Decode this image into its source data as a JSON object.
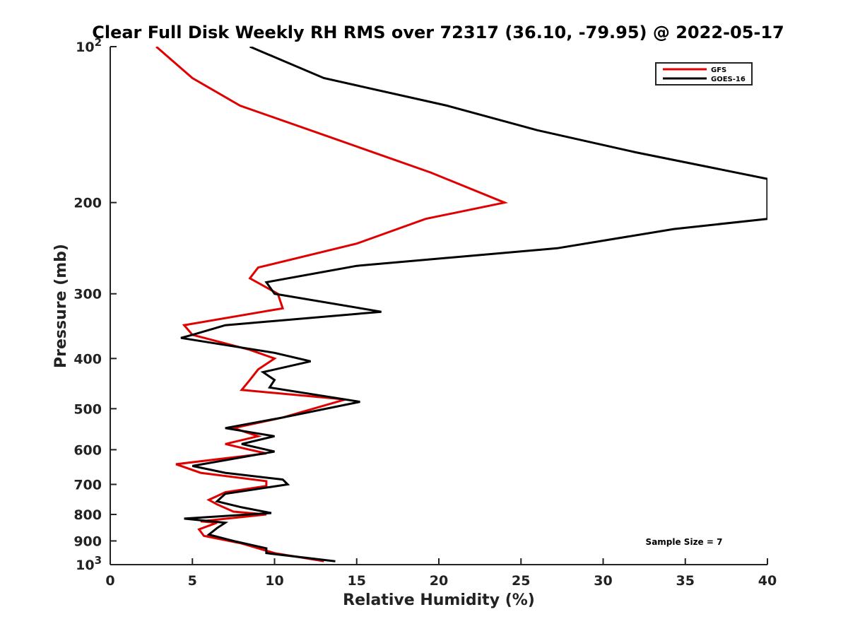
{
  "chart_data": {
    "type": "line",
    "title": "Clear Full Disk Weekly RH RMS over 72317 (36.10, -79.95) @ 2022-05-17",
    "xlabel": "Relative Humidity (%)",
    "ylabel": "Pressure (mb)",
    "xlim": [
      0,
      40
    ],
    "ylim": [
      100,
      1000
    ],
    "y_scale": "log",
    "y_reversed": true,
    "x_ticks": [
      0,
      5,
      10,
      15,
      20,
      25,
      30,
      35,
      40
    ],
    "y_ticks": [
      {
        "value": 100,
        "label": "10",
        "sup": "2"
      },
      {
        "value": 200,
        "label": "200"
      },
      {
        "value": 300,
        "label": "300"
      },
      {
        "value": 400,
        "label": "400"
      },
      {
        "value": 500,
        "label": "500"
      },
      {
        "value": 600,
        "label": "600"
      },
      {
        "value": 700,
        "label": "700"
      },
      {
        "value": 800,
        "label": "800"
      },
      {
        "value": 900,
        "label": "900"
      },
      {
        "value": 1000,
        "label": "10",
        "sup": "3"
      }
    ],
    "grid": false,
    "legend_position": "top-right",
    "series": [
      {
        "name": "GFS",
        "color": "#e00000",
        "points": [
          [
            2.8,
            100
          ],
          [
            5.0,
            115
          ],
          [
            7.9,
            130
          ],
          [
            13.5,
            150
          ],
          [
            19.5,
            175
          ],
          [
            24.0,
            200
          ],
          [
            19.2,
            215
          ],
          [
            15.0,
            240
          ],
          [
            9.0,
            267
          ],
          [
            8.5,
            280
          ],
          [
            10.2,
            300
          ],
          [
            10.5,
            320
          ],
          [
            4.5,
            345
          ],
          [
            5.0,
            360
          ],
          [
            8.5,
            385
          ],
          [
            10.0,
            400
          ],
          [
            9.0,
            420
          ],
          [
            8.5,
            440
          ],
          [
            8.0,
            460
          ],
          [
            14.3,
            480
          ],
          [
            10.5,
            520
          ],
          [
            7.5,
            545
          ],
          [
            9.0,
            565
          ],
          [
            7.0,
            585
          ],
          [
            8.5,
            600
          ],
          [
            9.5,
            610
          ],
          [
            4.0,
            640
          ],
          [
            5.5,
            665
          ],
          [
            9.5,
            690
          ],
          [
            9.5,
            705
          ],
          [
            7.0,
            725
          ],
          [
            6.0,
            750
          ],
          [
            6.5,
            765
          ],
          [
            7.5,
            790
          ],
          [
            9.5,
            800
          ],
          [
            5.5,
            825
          ],
          [
            6.5,
            830
          ],
          [
            5.4,
            855
          ],
          [
            5.7,
            880
          ],
          [
            8.0,
            910
          ],
          [
            10.0,
            950
          ],
          [
            13.0,
            985
          ]
        ]
      },
      {
        "name": "GOES-16",
        "color": "#000000",
        "points": [
          [
            8.5,
            100
          ],
          [
            13.0,
            115
          ],
          [
            20.5,
            130
          ],
          [
            26.0,
            145
          ],
          [
            32.0,
            160
          ],
          [
            40.0,
            180
          ],
          [
            40.0,
            215
          ],
          [
            34.3,
            225
          ],
          [
            27.2,
            245
          ],
          [
            15.0,
            265
          ],
          [
            9.5,
            285
          ],
          [
            10.0,
            300
          ],
          [
            16.5,
            325
          ],
          [
            7.0,
            345
          ],
          [
            5.0,
            360
          ],
          [
            4.3,
            365
          ],
          [
            10.0,
            390
          ],
          [
            12.2,
            405
          ],
          [
            9.3,
            425
          ],
          [
            10.0,
            440
          ],
          [
            9.7,
            455
          ],
          [
            15.2,
            485
          ],
          [
            10.5,
            520
          ],
          [
            7.0,
            545
          ],
          [
            10.0,
            565
          ],
          [
            8.0,
            585
          ],
          [
            10.0,
            605
          ],
          [
            5.0,
            645
          ],
          [
            7.0,
            665
          ],
          [
            10.5,
            685
          ],
          [
            10.8,
            700
          ],
          [
            7.0,
            730
          ],
          [
            6.5,
            755
          ],
          [
            8.0,
            775
          ],
          [
            9.8,
            795
          ],
          [
            4.5,
            815
          ],
          [
            7.0,
            830
          ],
          [
            6.5,
            850
          ],
          [
            6.0,
            875
          ],
          [
            7.5,
            900
          ],
          [
            9.5,
            930
          ],
          [
            9.5,
            950
          ],
          [
            13.7,
            985
          ]
        ]
      }
    ],
    "annotations": [
      "Sample Size = 7"
    ]
  }
}
